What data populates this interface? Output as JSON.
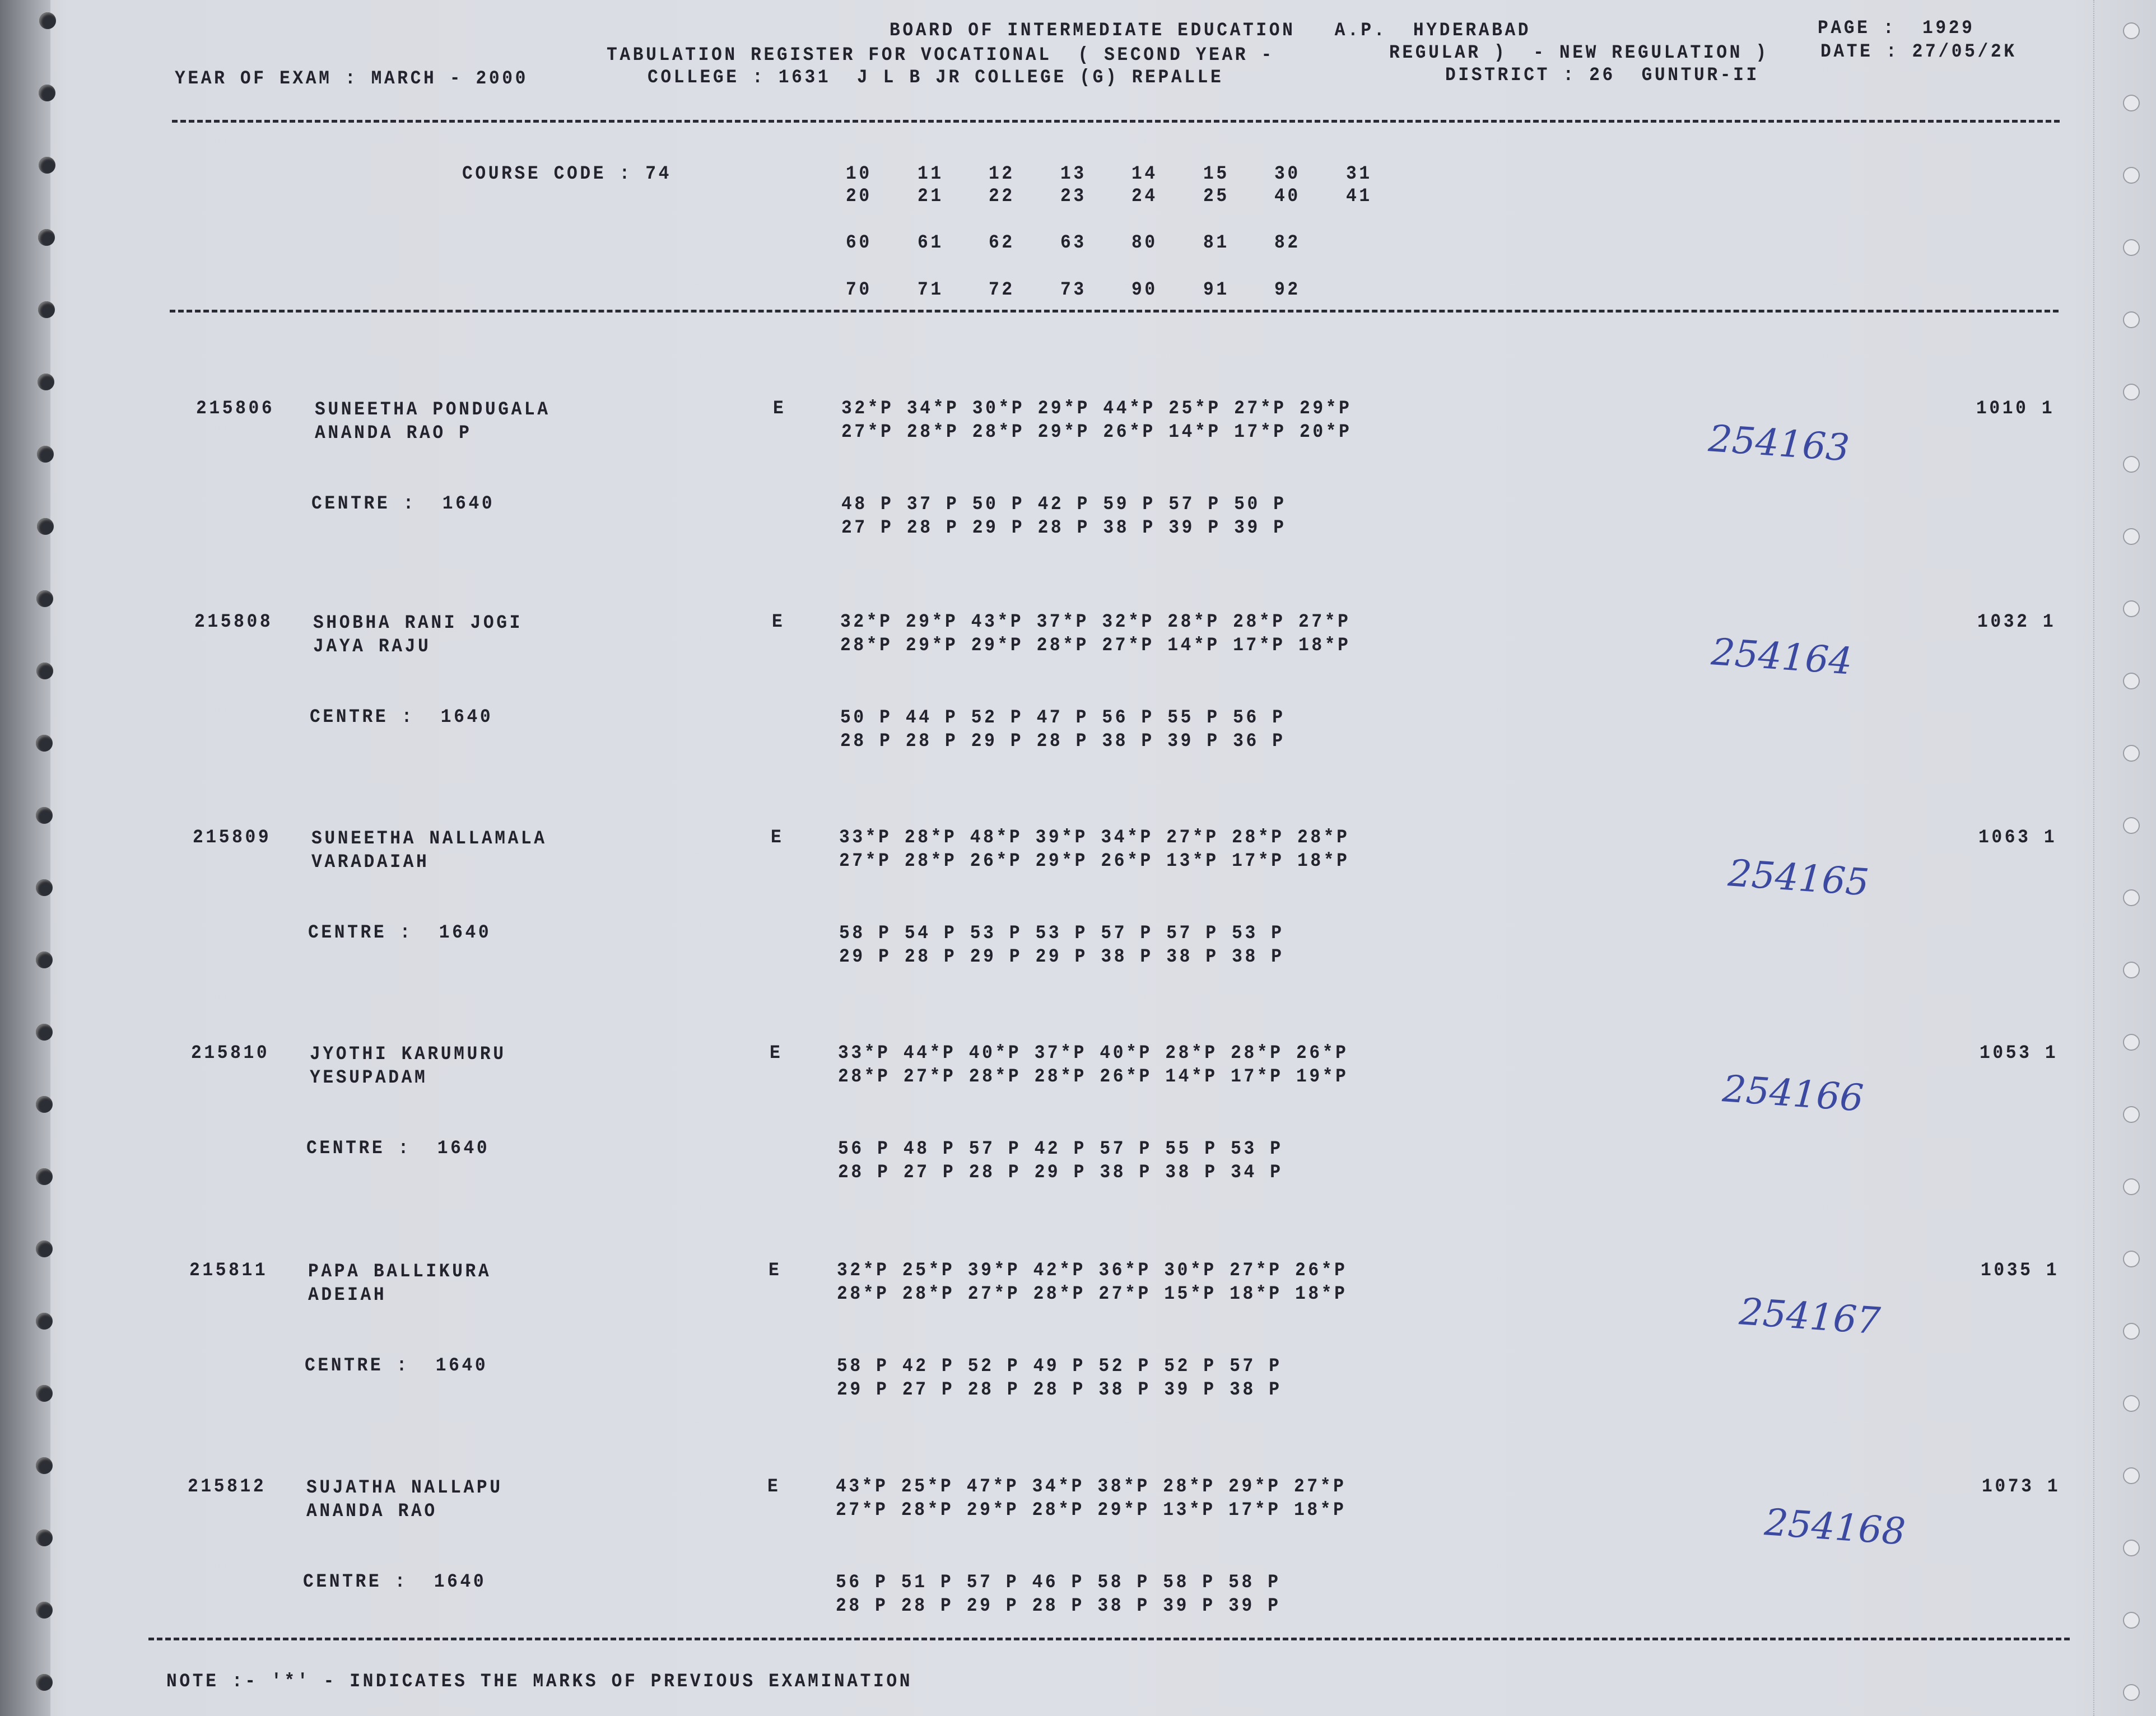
{
  "header": {
    "board": "BOARD OF INTERMEDIATE EDUCATION   A.P.  HYDERABAD",
    "page_label": "PAGE :  1929",
    "register": "TABULATION REGISTER FOR VOCATIONAL  ( SECOND YEAR -",
    "regulation": "REGULAR )  - NEW REGULATION )",
    "date": "DATE : 27/05/2K",
    "year_of_exam": "YEAR OF EXAM : MARCH - 2000",
    "college": "COLLEGE : 1631  J L B JR COLLEGE (G) REPALLE",
    "district": "DISTRICT : 26  GUNTUR-II"
  },
  "course": {
    "label": "COURSE CODE : 74",
    "rows": [
      [
        "10",
        "11",
        "12",
        "13",
        "14",
        "15",
        "30",
        "31"
      ],
      [
        "20",
        "21",
        "22",
        "23",
        "24",
        "25",
        "40",
        "41"
      ],
      [
        "60",
        "61",
        "62",
        "63",
        "80",
        "81",
        "82"
      ],
      [
        "70",
        "71",
        "72",
        "73",
        "90",
        "91",
        "92"
      ]
    ]
  },
  "records": [
    {
      "id": "215806",
      "name": "SUNEETHA PONDUGALA",
      "parent": "ANANDA RAO P",
      "code": "E",
      "centre": "CENTRE :  1640",
      "marks": [
        "32*P 34*P 30*P 29*P 44*P 25*P 27*P 29*P",
        "27*P 28*P 28*P 29*P 26*P 14*P 17*P 20*P",
        "48 P 37 P 50 P 42 P 59 P 57 P 50 P",
        "27 P 28 P 29 P 28 P 38 P 39 P 39 P"
      ],
      "total": "1010 1",
      "handwritten": "254163"
    },
    {
      "id": "215808",
      "name": "SHOBHA RANI JOGI",
      "parent": "JAYA RAJU",
      "code": "E",
      "centre": "CENTRE :  1640",
      "marks": [
        "32*P 29*P 43*P 37*P 32*P 28*P 28*P 27*P",
        "28*P 29*P 29*P 28*P 27*P 14*P 17*P 18*P",
        "50 P 44 P 52 P 47 P 56 P 55 P 56 P",
        "28 P 28 P 29 P 28 P 38 P 39 P 36 P"
      ],
      "total": "1032 1",
      "handwritten": "254164"
    },
    {
      "id": "215809",
      "name": "SUNEETHA NALLAMALA",
      "parent": "VARADAIAH",
      "code": "E",
      "centre": "CENTRE :  1640",
      "marks": [
        "33*P 28*P 48*P 39*P 34*P 27*P 28*P 28*P",
        "27*P 28*P 26*P 29*P 26*P 13*P 17*P 18*P",
        "58 P 54 P 53 P 53 P 57 P 57 P 53 P",
        "29 P 28 P 29 P 29 P 38 P 38 P 38 P"
      ],
      "total": "1063 1",
      "handwritten": "254165"
    },
    {
      "id": "215810",
      "name": "JYOTHI KARUMURU",
      "parent": "YESUPADAM",
      "code": "E",
      "centre": "CENTRE :  1640",
      "marks": [
        "33*P 44*P 40*P 37*P 40*P 28*P 28*P 26*P",
        "28*P 27*P 28*P 28*P 26*P 14*P 17*P 19*P",
        "56 P 48 P 57 P 42 P 57 P 55 P 53 P",
        "28 P 27 P 28 P 29 P 38 P 38 P 34 P"
      ],
      "total": "1053 1",
      "handwritten": "254166"
    },
    {
      "id": "215811",
      "name": "PAPA BALLIKURA",
      "parent": "ADEIAH",
      "code": "E",
      "centre": "CENTRE :  1640",
      "marks": [
        "32*P 25*P 39*P 42*P 36*P 30*P 27*P 26*P",
        "28*P 28*P 27*P 28*P 27*P 15*P 18*P 18*P",
        "58 P 42 P 52 P 49 P 52 P 52 P 57 P",
        "29 P 27 P 28 P 28 P 38 P 39 P 38 P"
      ],
      "total": "1035 1",
      "handwritten": "254167"
    },
    {
      "id": "215812",
      "name": "SUJATHA NALLAPU",
      "parent": "ANANDA RAO",
      "code": "E",
      "centre": "CENTRE :  1640",
      "marks": [
        "43*P 25*P 47*P 34*P 38*P 28*P 29*P 27*P",
        "27*P 28*P 29*P 28*P 29*P 13*P 17*P 18*P",
        "56 P 51 P 57 P 46 P 58 P 58 P 58 P",
        "28 P 28 P 29 P 28 P 38 P 39 P 39 P"
      ],
      "total": "1073 1",
      "handwritten": "254168"
    }
  ],
  "note": "NOTE :- '*' - INDICATES THE MARKS OF PREVIOUS EXAMINATION",
  "colors": {
    "paper": "#dcdfe5",
    "ink": "#23232e",
    "handwriting": "#3b4aa0"
  }
}
